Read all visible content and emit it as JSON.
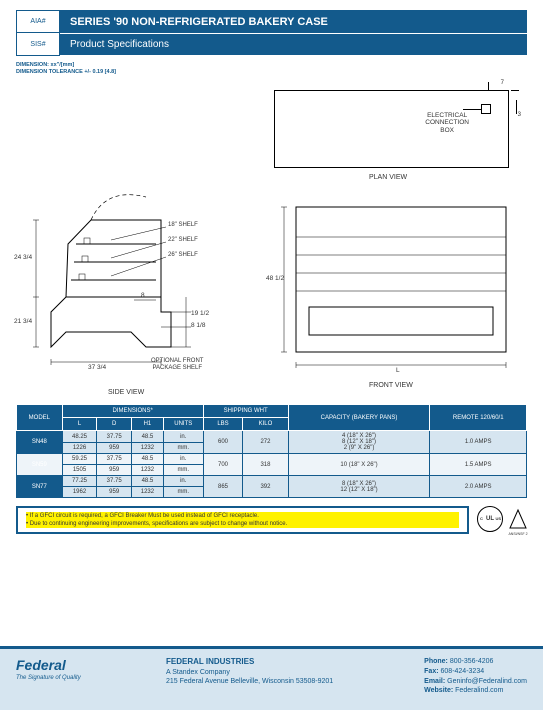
{
  "header": {
    "aia": "AIA#",
    "sis": "SIS#",
    "title": "SERIES '90 NON-REFRIGERATED BAKERY CASE",
    "subtitle": "Product Specifications"
  },
  "dim_note": {
    "l1": "DIMENSION: xx\"/[mm]",
    "l2": "DIMENSION TOLERANCE +/- 0.19 [4.8]"
  },
  "plan": {
    "label": "PLAN VIEW",
    "elec1": "ELECTRICAL",
    "elec2": "CONNECTION",
    "elec3": "BOX",
    "d7": "7",
    "d3": "3"
  },
  "side": {
    "label": "SIDE VIEW",
    "s18": "18\" SHELF",
    "s22": "22\" SHELF",
    "s26": "26\" SHELF",
    "d24": "24 3/4",
    "d21": "21 3/4",
    "d37": "37 3/4",
    "d8": "8",
    "d19": "19 1/2",
    "d81": "8 1/8",
    "opt1": "OPTIONAL FRONT",
    "opt2": "PACKAGE SHELF"
  },
  "front": {
    "label": "FRONT VIEW",
    "d48": "48 1/2",
    "dL": "L"
  },
  "table": {
    "h_model": "MODEL",
    "h_dim": "DIMENSIONS*",
    "h_ship": "SHIPPING WHT",
    "h_cap": "CAPACITY (BAKERY PANS)",
    "h_rem": "REMOTE 120/60/1",
    "h_L": "L",
    "h_D": "D",
    "h_H1": "H1",
    "h_units": "UNITS",
    "h_lbs": "LBS",
    "h_kilo": "KILO",
    "rows": [
      {
        "model": "SN48",
        "L": "48.25",
        "D": "37.75",
        "H1": "48.5",
        "u": "in.",
        "L2": "1226",
        "D2": "959",
        "H12": "1232",
        "u2": "mm.",
        "lbs": "600",
        "kilo": "272",
        "cap": "4 (18\" X 26\")\n8 (12\" X 18\")\n2 (9\" X 26\")",
        "rem": "1.0 AMPS"
      },
      {
        "model": "SN59",
        "L": "59.25",
        "D": "37.75",
        "H1": "48.5",
        "u": "in.",
        "L2": "1505",
        "D2": "959",
        "H12": "1232",
        "u2": "mm.",
        "lbs": "700",
        "kilo": "318",
        "cap": "10 (18\" X 26\")",
        "rem": "1.5 AMPS"
      },
      {
        "model": "SN77",
        "L": "77.25",
        "D": "37.75",
        "H1": "48.5",
        "u": "in.",
        "L2": "1962",
        "D2": "959",
        "H12": "1232",
        "u2": "mm.",
        "lbs": "865",
        "kilo": "392",
        "cap": "8 (18\" X 26\")\n12 (12\" X 18\")",
        "rem": "2.0 AMPS"
      }
    ]
  },
  "notes": {
    "n1": "If a GFCI circuit is required, a GFCI Breaker Must be used instead of GFCI receptacle.",
    "n2": "Due to continuing engineering improvements, specifications are subject to change without notice."
  },
  "cert": {
    "ul": "UL",
    "us": "US",
    "ansi": "ANSI/NSF 2"
  },
  "footer": {
    "brand": "Federal",
    "tag": "The Signature of Quality",
    "co": "FEDERAL INDUSTRIES",
    "sub": "A Standex Company",
    "addr": "215 Federal Avenue Belleville, Wisconsin 53508-9201",
    "phone_l": "Phone:",
    "phone": "800-356-4206",
    "fax_l": "Fax:",
    "fax": "608-424-3234",
    "email_l": "Email:",
    "email": "Geninfo@Federalind.com",
    "web_l": "Website:",
    "web": "Federalind.com"
  }
}
